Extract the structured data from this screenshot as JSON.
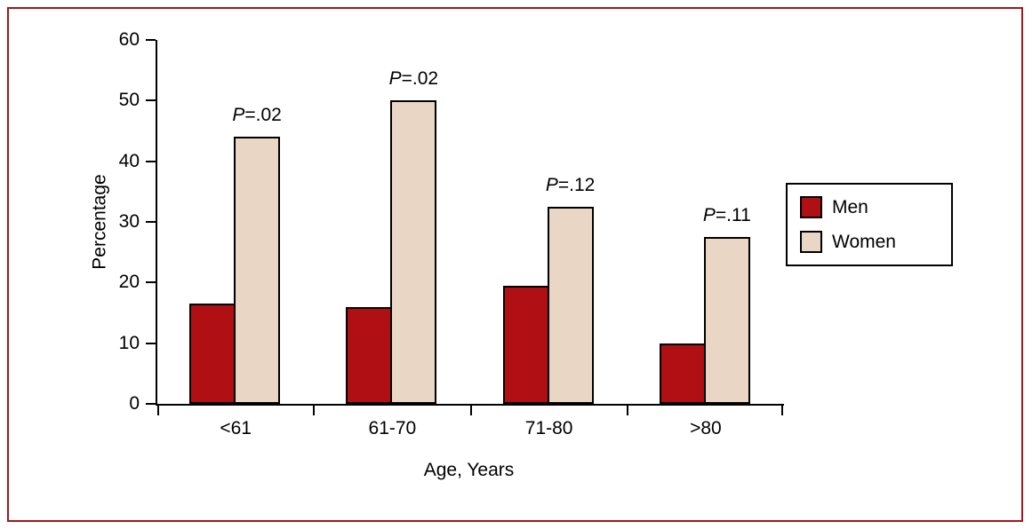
{
  "chart_data": {
    "type": "bar",
    "title": "",
    "xlabel": "Age, Years",
    "ylabel": "Percentage",
    "ylim": [
      0,
      60
    ],
    "yticks": [
      0,
      10,
      20,
      30,
      40,
      50,
      60
    ],
    "categories": [
      "<61",
      "61-70",
      "71-80",
      ">80"
    ],
    "series": [
      {
        "name": "Men",
        "color": "#b01014",
        "values": [
          16.5,
          16,
          19.5,
          10
        ]
      },
      {
        "name": "Women",
        "color": "#ead6c5",
        "values": [
          44,
          50,
          32.5,
          27.5
        ]
      }
    ],
    "annotations": [
      "P=.02",
      "P=.02",
      "P=.12",
      "P=.11"
    ],
    "legend": {
      "position": "right",
      "entries": [
        "Men",
        "Women"
      ]
    },
    "grid": false
  },
  "colors": {
    "frame_border": "#a4161c",
    "axis": "#000000",
    "bar_border": "#000000"
  }
}
